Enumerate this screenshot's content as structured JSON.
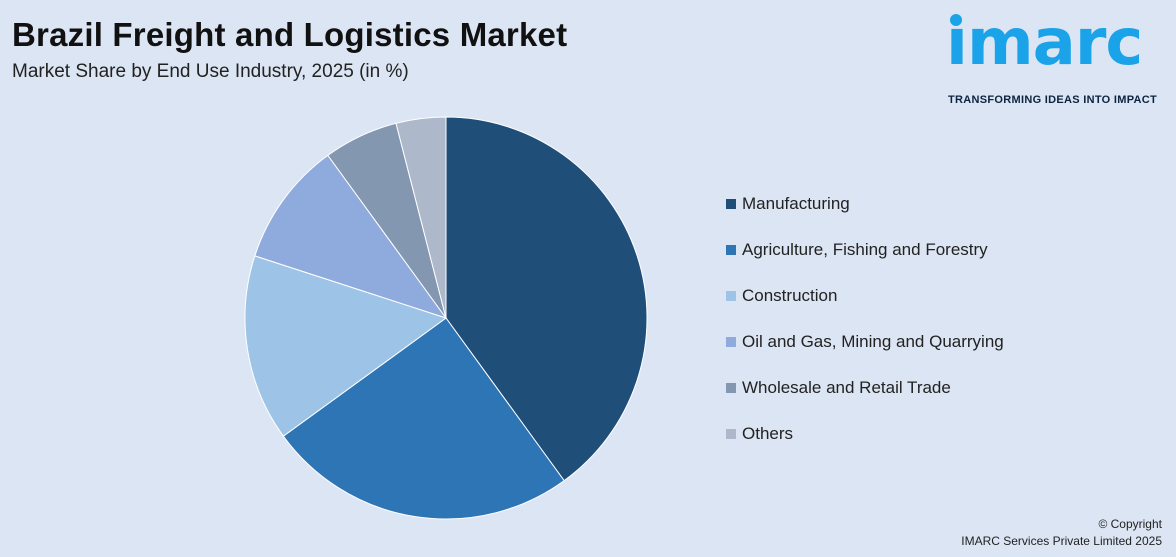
{
  "header": {
    "title": "Brazil Freight and Logistics Market",
    "subtitle": "Market Share by End Use Industry, 2025 (in %)"
  },
  "logo": {
    "word": "ımarc",
    "tagline": "TRANSFORMING IDEAS INTO IMPACT",
    "color": "#1aa3e8"
  },
  "chart_data": {
    "type": "pie",
    "title": "Brazil Freight and Logistics Market",
    "subtitle": "Market Share by End Use Industry, 2025 (in %)",
    "legend_position": "right",
    "slices": [
      {
        "name": "Manufacturing",
        "value": 40,
        "color": "#1f4e79"
      },
      {
        "name": "Agriculture, Fishing and Forestry",
        "value": 25,
        "color": "#2e75b6"
      },
      {
        "name": "Construction",
        "value": 15,
        "color": "#9dc3e6"
      },
      {
        "name": "Oil and Gas, Mining and Quarrying",
        "value": 10,
        "color": "#8faadc"
      },
      {
        "name": "Wholesale and Retail Trade",
        "value": 6,
        "color": "#8497b0"
      },
      {
        "name": "Others",
        "value": 4,
        "color": "#adb9ca"
      }
    ]
  },
  "footer": {
    "copyright_line1": "© Copyright",
    "copyright_line2": "IMARC Services Private Limited 2025"
  }
}
